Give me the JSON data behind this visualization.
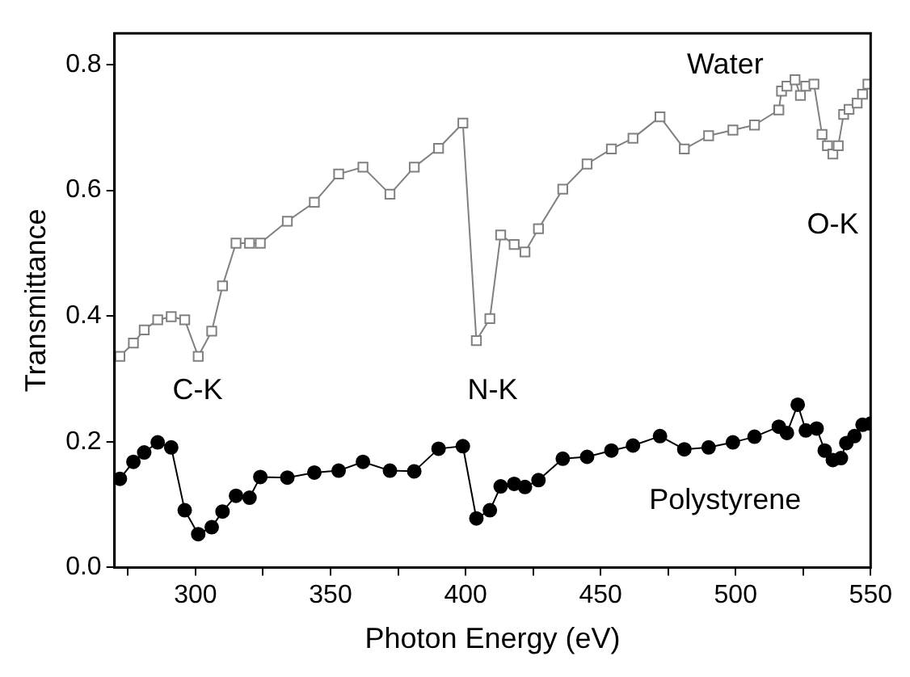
{
  "chart_data": {
    "type": "line",
    "xlabel": "Photon Energy (eV)",
    "ylabel": "Transmittance",
    "xlim": [
      270,
      550
    ],
    "ylim": [
      0,
      0.85
    ],
    "xticks": [
      {
        "value": 275,
        "label": null
      },
      300,
      {
        "value": 325,
        "label": null
      },
      350,
      {
        "value": 375,
        "label": null
      },
      400,
      {
        "value": 425,
        "label": null
      },
      450,
      {
        "value": 475,
        "label": null
      },
      500,
      {
        "value": 525,
        "label": null
      },
      550
    ],
    "yticks": [
      {
        "value": 0,
        "label": "0.0"
      },
      {
        "value": 0.2,
        "label": "0.2"
      },
      {
        "value": 0.4,
        "label": "0.4"
      },
      {
        "value": 0.6,
        "label": "0.6"
      },
      {
        "value": 0.8,
        "label": "0.8"
      }
    ],
    "grid": false,
    "legend": false,
    "series": [
      {
        "name": "Water",
        "color": "#808080",
        "marker": "square",
        "x": [
          272,
          277,
          281,
          286,
          291,
          296,
          301,
          306,
          310,
          315,
          320,
          324,
          334,
          344,
          353,
          362,
          372,
          381,
          390,
          399,
          404,
          409,
          413,
          418,
          422,
          427,
          436,
          445,
          454,
          462,
          472,
          481,
          490,
          499,
          507,
          516,
          517,
          519,
          522,
          524,
          526,
          529,
          532,
          534,
          536,
          538,
          540,
          542,
          545,
          547,
          549
        ],
        "values": [
          0.336,
          0.357,
          0.378,
          0.394,
          0.399,
          0.394,
          0.336,
          0.376,
          0.448,
          0.516,
          0.516,
          0.516,
          0.551,
          0.581,
          0.626,
          0.637,
          0.594,
          0.637,
          0.667,
          0.707,
          0.361,
          0.396,
          0.529,
          0.514,
          0.502,
          0.539,
          0.602,
          0.642,
          0.666,
          0.683,
          0.717,
          0.666,
          0.687,
          0.696,
          0.704,
          0.728,
          0.758,
          0.766,
          0.776,
          0.751,
          0.766,
          0.769,
          0.689,
          0.671,
          0.658,
          0.671,
          0.721,
          0.729,
          0.739,
          0.753,
          0.769
        ]
      },
      {
        "name": "Polystyrene",
        "color": "#000000",
        "marker": "circle",
        "x": [
          272,
          277,
          281,
          286,
          291,
          296,
          301,
          306,
          310,
          315,
          320,
          324,
          334,
          344,
          353,
          362,
          372,
          381,
          390,
          399,
          404,
          409,
          413,
          418,
          422,
          427,
          436,
          445,
          454,
          462,
          472,
          481,
          490,
          499,
          507,
          516,
          519,
          523,
          526,
          530,
          533,
          536,
          539,
          541,
          544,
          547,
          550
        ],
        "values": [
          0.141,
          0.168,
          0.183,
          0.199,
          0.191,
          0.091,
          0.053,
          0.064,
          0.089,
          0.114,
          0.111,
          0.144,
          0.143,
          0.151,
          0.154,
          0.168,
          0.154,
          0.153,
          0.189,
          0.193,
          0.078,
          0.091,
          0.129,
          0.133,
          0.128,
          0.139,
          0.173,
          0.176,
          0.186,
          0.194,
          0.209,
          0.188,
          0.191,
          0.199,
          0.208,
          0.224,
          0.214,
          0.259,
          0.218,
          0.221,
          0.186,
          0.171,
          0.174,
          0.198,
          0.209,
          0.227,
          0.229
        ]
      }
    ],
    "annotations": [
      "C-K",
      "N-K",
      "O-K"
    ]
  }
}
